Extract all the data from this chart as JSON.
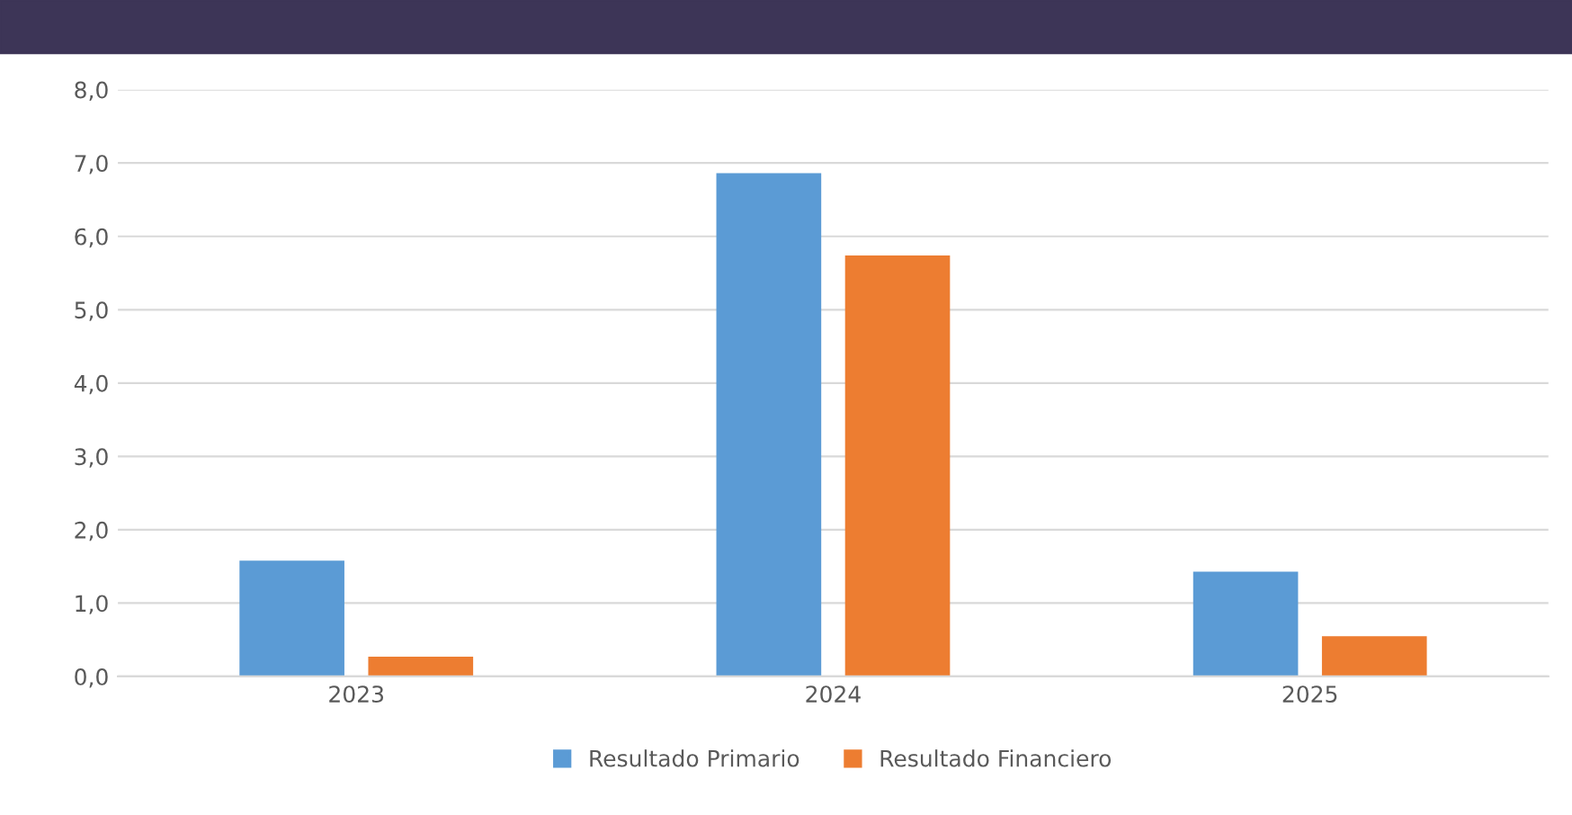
{
  "chart_data": {
    "type": "bar",
    "categories": [
      "2023",
      "2024",
      "2025"
    ],
    "series": [
      {
        "name": "Resultado Primario",
        "color": "#5b9bd5",
        "values": [
          1.58,
          6.86,
          1.43
        ]
      },
      {
        "name": "Resultado Financiero",
        "color": "#ed7d31",
        "values": [
          0.27,
          5.74,
          0.55
        ]
      }
    ],
    "ylim": [
      0,
      8
    ],
    "yticks": [
      {
        "value": 0,
        "label": "0,0"
      },
      {
        "value": 1,
        "label": "1,0"
      },
      {
        "value": 2,
        "label": "2,0"
      },
      {
        "value": 3,
        "label": "3,0"
      },
      {
        "value": 4,
        "label": "4,0"
      },
      {
        "value": 5,
        "label": "5,0"
      },
      {
        "value": 6,
        "label": "6,0"
      },
      {
        "value": 7,
        "label": "7,0"
      },
      {
        "value": 8,
        "label": "8,0"
      }
    ],
    "grid": "y",
    "legend": "bottom"
  }
}
